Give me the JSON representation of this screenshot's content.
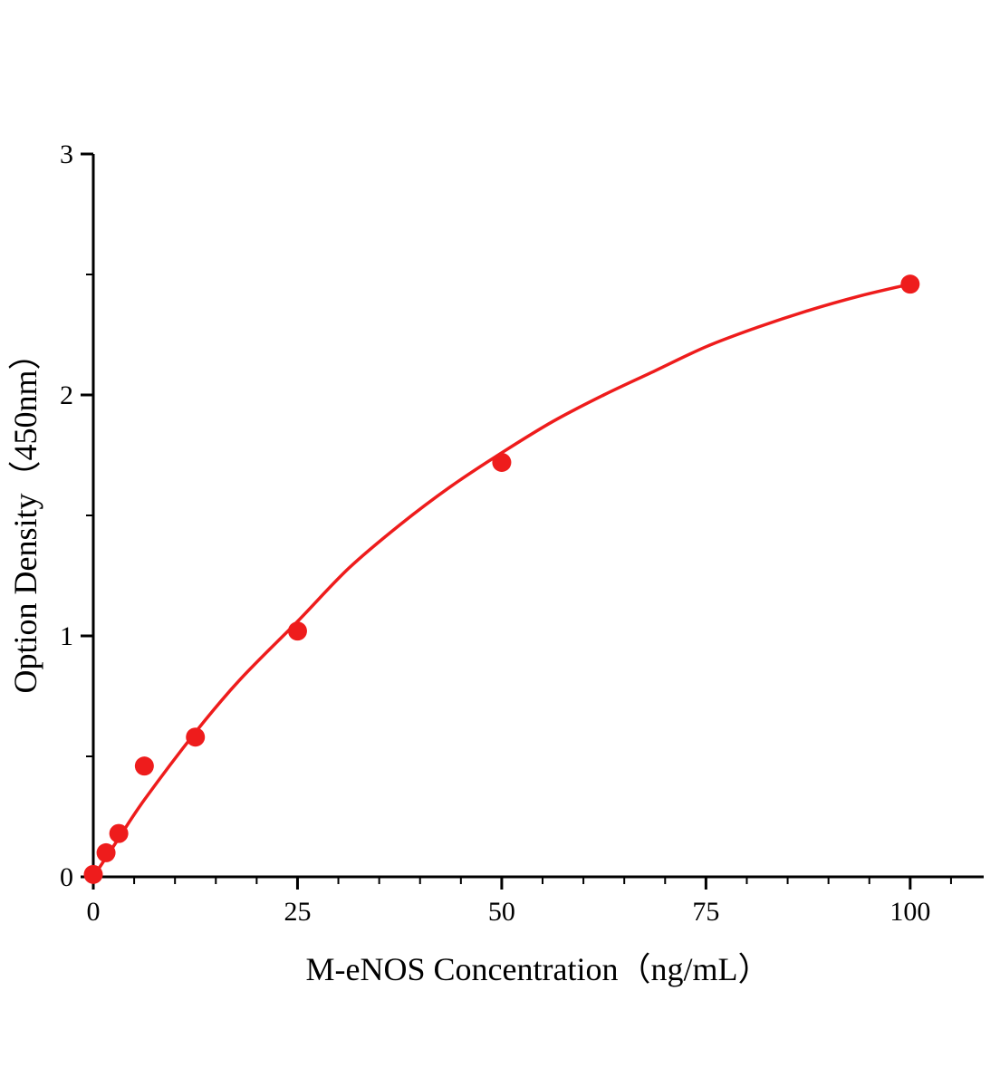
{
  "chart_data": {
    "type": "scatter",
    "title": "",
    "xlabel": "M-eNOS Concentration（ng/mL）",
    "ylabel": "Option Density（450nm）",
    "x": [
      0,
      1.56,
      3.12,
      6.25,
      12.5,
      25,
      50,
      100
    ],
    "y": [
      0.01,
      0.1,
      0.18,
      0.46,
      0.58,
      1.02,
      1.72,
      2.46
    ],
    "fit_curve": {
      "x": [
        0,
        1.56,
        3.12,
        6.25,
        12.5,
        18,
        25,
        31.25,
        37.5,
        43.75,
        50,
        56.25,
        62.5,
        68.75,
        75,
        81.25,
        87.5,
        93.75,
        100
      ],
      "y": [
        0.0,
        0.08,
        0.16,
        0.32,
        0.6,
        0.82,
        1.06,
        1.28,
        1.46,
        1.62,
        1.76,
        1.89,
        2.0,
        2.1,
        2.2,
        2.28,
        2.35,
        2.41,
        2.46
      ]
    },
    "xlim": [
      0,
      109
    ],
    "ylim": [
      0,
      3
    ],
    "x_major_ticks": [
      0,
      25,
      50,
      75,
      100
    ],
    "y_major_ticks": [
      0,
      1,
      2,
      3
    ],
    "x_minor_step": 5,
    "x_minor_max": 105,
    "y_minor_step": 0.5,
    "grid": false,
    "legend": null,
    "point_color": "#ee1c1c",
    "line_color": "#ee1c1c",
    "axis_color": "#000000",
    "point_radius": 10.5
  }
}
